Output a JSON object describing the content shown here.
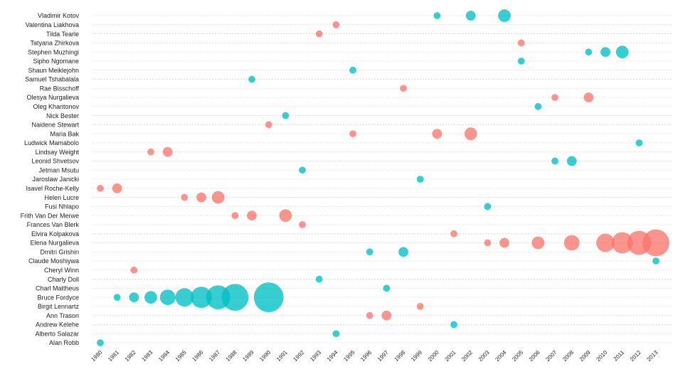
{
  "chart_data": {
    "type": "scatter",
    "title": "",
    "xlabel": "",
    "ylabel": "",
    "xlim": [
      1980,
      2013
    ],
    "x_ticks": [
      "1980",
      "1981",
      "1982",
      "1983",
      "1984",
      "1985",
      "1986",
      "1987",
      "1988",
      "1989",
      "1990",
      "1991",
      "1992",
      "1993",
      "1994",
      "1995",
      "1996",
      "1997",
      "1998",
      "1999",
      "2000",
      "2001",
      "2002",
      "2003",
      "2004",
      "2005",
      "2006",
      "2007",
      "2008",
      "2009",
      "2010",
      "2011",
      "2012",
      "2013"
    ],
    "grid": true,
    "legend": "none",
    "size_encoding": "cumulative wins",
    "colors": {
      "female": "#f8766d",
      "male": "#00bfc4"
    },
    "runners": [
      {
        "name": "Vladimir Kotov",
        "group": "male",
        "years": [
          2000,
          2002,
          2004
        ]
      },
      {
        "name": "Valentina Liakhova",
        "group": "female",
        "years": [
          1994
        ]
      },
      {
        "name": "Tilda Tearle",
        "group": "female",
        "years": [
          1993
        ]
      },
      {
        "name": "Tatyana Zhirkova",
        "group": "female",
        "years": [
          2005
        ]
      },
      {
        "name": "Stephen Muzhingi",
        "group": "male",
        "years": [
          2009,
          2010,
          2011
        ]
      },
      {
        "name": "Sipho Ngomane",
        "group": "male",
        "years": [
          2005
        ]
      },
      {
        "name": "Shaun Meiklejohn",
        "group": "male",
        "years": [
          1995
        ]
      },
      {
        "name": "Samuel Tshabalala",
        "group": "male",
        "years": [
          1989
        ]
      },
      {
        "name": "Rae Bisschoff",
        "group": "female",
        "years": [
          1998
        ]
      },
      {
        "name": "Olesya Nurgalieva",
        "group": "female",
        "years": [
          2007,
          2009
        ]
      },
      {
        "name": "Oleg Kharitonov",
        "group": "male",
        "years": [
          2006
        ]
      },
      {
        "name": "Nick Bester",
        "group": "male",
        "years": [
          1991
        ]
      },
      {
        "name": "Naidene Stewart",
        "group": "female",
        "years": [
          1990
        ]
      },
      {
        "name": "Maria Bak",
        "group": "female",
        "years": [
          1995,
          2000,
          2002
        ]
      },
      {
        "name": "Ludwick Mamabolo",
        "group": "male",
        "years": [
          2012
        ]
      },
      {
        "name": "Lindsay Weight",
        "group": "female",
        "years": [
          1983,
          1984
        ]
      },
      {
        "name": "Leonid Shvetsov",
        "group": "male",
        "years": [
          2007,
          2008
        ]
      },
      {
        "name": "Jetman Msutu",
        "group": "male",
        "years": [
          1992
        ]
      },
      {
        "name": "Jaroslaw Janicki",
        "group": "male",
        "years": [
          1999
        ]
      },
      {
        "name": "Isavel Roche-Kelly",
        "group": "female",
        "years": [
          1980,
          1981
        ]
      },
      {
        "name": "Helen Lucre",
        "group": "female",
        "years": [
          1985,
          1986,
          1987
        ]
      },
      {
        "name": "Fusi Nhlapo",
        "group": "male",
        "years": [
          2003
        ]
      },
      {
        "name": "Frith Van Der Merwe",
        "group": "female",
        "years": [
          1988,
          1989,
          1991
        ]
      },
      {
        "name": "Frances Van Blerk",
        "group": "female",
        "years": [
          1992
        ]
      },
      {
        "name": "Elvira Kolpakova",
        "group": "female",
        "years": [
          2001
        ]
      },
      {
        "name": "Elena Nurgalieva",
        "group": "female",
        "years": [
          2003,
          2004,
          2006,
          2008,
          2010,
          2011,
          2012,
          2013
        ]
      },
      {
        "name": "Dmitri Grishin",
        "group": "male",
        "years": [
          1996,
          1998
        ]
      },
      {
        "name": "Claude Moshiywa",
        "group": "male",
        "years": [
          2013
        ]
      },
      {
        "name": "Cheryl Winn",
        "group": "female",
        "years": [
          1982
        ]
      },
      {
        "name": "Charly Doll",
        "group": "male",
        "years": [
          1993
        ]
      },
      {
        "name": "Charl Mattheus",
        "group": "male",
        "years": [
          1997
        ]
      },
      {
        "name": "Bruce Fordyce",
        "group": "male",
        "years": [
          1981,
          1982,
          1983,
          1984,
          1985,
          1986,
          1987,
          1988,
          1990
        ]
      },
      {
        "name": "Birgit Lennartz",
        "group": "female",
        "years": [
          1999
        ]
      },
      {
        "name": "Ann Trason",
        "group": "female",
        "years": [
          1996,
          1997
        ]
      },
      {
        "name": "Andrew Kelehe",
        "group": "male",
        "years": [
          2001
        ]
      },
      {
        "name": "Alberto Salazar",
        "group": "male",
        "years": [
          1994
        ]
      },
      {
        "name": "Alan Robb",
        "group": "male",
        "years": [
          1980
        ]
      }
    ]
  }
}
